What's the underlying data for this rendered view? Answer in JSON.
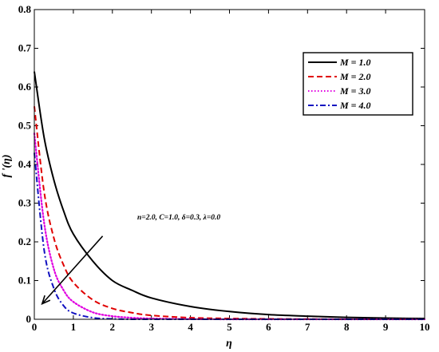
{
  "chart_data": {
    "type": "line",
    "xlabel": "η",
    "ylabel": "f '(η)",
    "xlim": [
      0,
      10
    ],
    "ylim": [
      0,
      0.8
    ],
    "xticks": [
      "0",
      "1",
      "2",
      "3",
      "4",
      "5",
      "6",
      "7",
      "8",
      "9",
      "10"
    ],
    "yticks": [
      "0",
      "0.1",
      "0.2",
      "0.3",
      "0.4",
      "0.5",
      "0.6",
      "0.7",
      "0.8"
    ],
    "legend_position": "top-right",
    "annotation": "n=2.0, C=1.0, δ=0.3, λ=0.0",
    "series": [
      {
        "name": "M = 1.0",
        "color": "#000000",
        "style": "solid",
        "x": [
          0,
          0.25,
          0.5,
          0.75,
          1,
          1.5,
          2,
          2.5,
          3,
          4,
          5,
          6,
          7,
          8,
          9,
          10
        ],
        "y": [
          0.64,
          0.47,
          0.36,
          0.28,
          0.22,
          0.15,
          0.1,
          0.075,
          0.055,
          0.033,
          0.02,
          0.012,
          0.008,
          0.005,
          0.003,
          0.002
        ]
      },
      {
        "name": "M = 2.0",
        "color": "#e00000",
        "style": "dashed",
        "x": [
          0,
          0.25,
          0.5,
          0.75,
          1,
          1.5,
          2,
          2.5,
          3,
          4,
          5,
          6,
          7,
          8,
          9,
          10
        ],
        "y": [
          0.55,
          0.33,
          0.21,
          0.14,
          0.095,
          0.05,
          0.028,
          0.017,
          0.01,
          0.004,
          0.002,
          0.001,
          0.0005,
          0,
          0,
          0
        ]
      },
      {
        "name": "M = 3.0",
        "color": "#e000e0",
        "style": "dotted",
        "x": [
          0,
          0.25,
          0.5,
          0.75,
          1,
          1.5,
          2,
          2.5,
          3,
          4,
          5,
          6,
          7,
          8,
          9,
          10
        ],
        "y": [
          0.48,
          0.25,
          0.13,
          0.075,
          0.045,
          0.018,
          0.008,
          0.004,
          0.002,
          0.0005,
          0,
          0,
          0,
          0,
          0,
          0
        ]
      },
      {
        "name": "M = 4.0",
        "color": "#1010c0",
        "style": "dashdot",
        "x": [
          0,
          0.25,
          0.5,
          0.75,
          1,
          1.5,
          2,
          2.5,
          3,
          4,
          5,
          6,
          7,
          8,
          9,
          10
        ],
        "y": [
          0.43,
          0.18,
          0.08,
          0.035,
          0.016,
          0.004,
          0.001,
          0,
          0,
          0,
          0,
          0,
          0,
          0,
          0,
          0
        ]
      }
    ],
    "arrow": {
      "from": [
        1.75,
        0.215
      ],
      "to": [
        0.2,
        0.04
      ]
    }
  }
}
